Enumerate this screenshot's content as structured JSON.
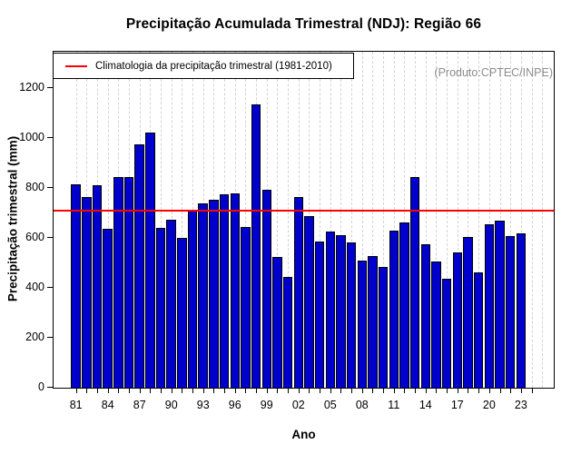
{
  "chart_data": {
    "type": "bar",
    "title": "Precipitação Acumulada Trimestral (NDJ): Região 66",
    "xlabel": "Ano",
    "ylabel": "Precipitação trimestral (mm)",
    "legend_label": "Climatologia da precipitação trimestral (1981-2010)",
    "annotation": "(Produto:CPTEC/INPE)",
    "legend_position": "top-left",
    "grid": "vertical-dashed",
    "ylim": [
      0,
      1340
    ],
    "y_ticks": [
      0,
      200,
      400,
      600,
      800,
      1000,
      1200
    ],
    "x_tick_labels": [
      "81",
      "84",
      "87",
      "90",
      "93",
      "96",
      "99",
      "02",
      "05",
      "08",
      "11",
      "14",
      "17",
      "20",
      "23"
    ],
    "years": [
      1981,
      1982,
      1983,
      1984,
      1985,
      1986,
      1987,
      1988,
      1989,
      1990,
      1991,
      1992,
      1993,
      1994,
      1995,
      1996,
      1997,
      1998,
      1999,
      2000,
      2001,
      2002,
      2003,
      2004,
      2005,
      2006,
      2007,
      2008,
      2009,
      2010,
      2011,
      2012,
      2013,
      2014,
      2015,
      2016,
      2017,
      2018,
      2019,
      2020,
      2021,
      2022,
      2023
    ],
    "values": [
      815,
      762,
      810,
      635,
      845,
      845,
      975,
      1020,
      640,
      672,
      600,
      714,
      737,
      754,
      775,
      778,
      643,
      1135,
      793,
      525,
      443,
      763,
      688,
      586,
      625,
      610,
      582,
      510,
      527,
      482,
      628,
      661,
      844,
      573,
      506,
      436,
      543,
      604,
      461,
      655,
      670,
      607,
      618
    ],
    "climatology_value": 710,
    "colors": {
      "bar_fill": "#0000cc",
      "bar_border": "#000000",
      "climatology_line": "#ff0000",
      "grid": "#d4d4d4",
      "annotation_text": "#8c8c8c"
    }
  }
}
